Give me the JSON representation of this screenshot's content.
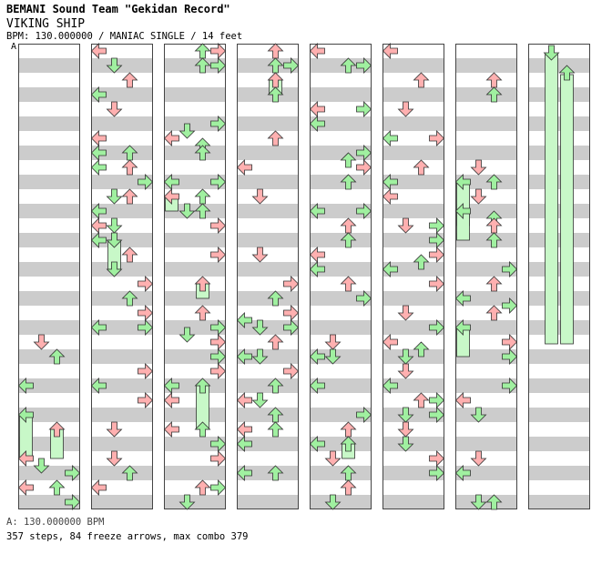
{
  "header": {
    "artist": "BEMANI Sound Team \"Gekidan Record\"",
    "title": "VIKING SHIP",
    "meta": "BPM: 130.000000 / MANIAC SINGLE / 14 feet",
    "bpm_marker": "A"
  },
  "footer": {
    "bpm_note": "A: 130.000000 BPM",
    "stats": "357 steps, 84 freeze arrows, max combo 379"
  },
  "colors": {
    "note_quarter": "#ffb0b0",
    "note_eighth": "#a0f0a0",
    "freeze_body": "#c8f8c8",
    "stripe": "#cccccc",
    "column_bg": "#ffffff",
    "border": "#444444"
  },
  "chart_data": {
    "type": "step-chart",
    "mode": "MANIAC SINGLE",
    "bpm": 130,
    "lanes": [
      "left",
      "down",
      "up",
      "right"
    ],
    "columns": 8,
    "measures_per_column": 8,
    "column_measure_ranges": [
      [
        0,
        8
      ],
      [
        8,
        16
      ],
      [
        16,
        24
      ],
      [
        24,
        32
      ],
      [
        32,
        40
      ],
      [
        40,
        48
      ],
      [
        48,
        56
      ],
      [
        56,
        64
      ]
    ],
    "arrow_icons": {
      "left": "left-arrow-icon",
      "down": "down-arrow-icon",
      "up": "up-arrow-icon",
      "right": "right-arrow-icon"
    }
  }
}
